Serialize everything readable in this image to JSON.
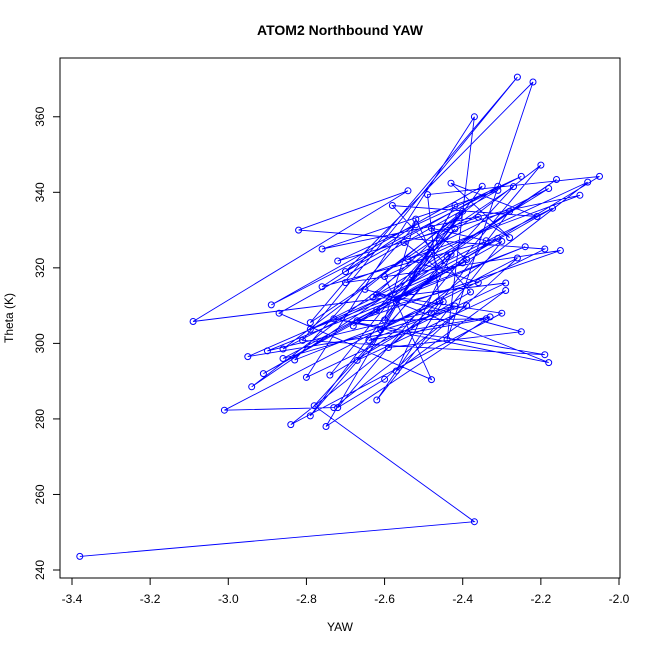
{
  "chart_data": {
    "type": "scatter",
    "connected": true,
    "title": "ATOM2 Northbound YAW",
    "xlabel": "YAW",
    "ylabel": "Theta (K)",
    "xlim": [
      -3.4,
      -2.0
    ],
    "ylim": [
      240,
      370
    ],
    "xticks": [
      -3.4,
      -3.2,
      -3.0,
      -2.8,
      -2.6,
      -2.4,
      -2.2,
      -2.0
    ],
    "xtick_labels": [
      "-3.4",
      "-3.2",
      "-3.0",
      "-2.8",
      "-2.6",
      "-2.4",
      "-2.2",
      "-2.0"
    ],
    "yticks": [
      240,
      260,
      280,
      300,
      320,
      340,
      360
    ],
    "ytick_labels": [
      "240",
      "260",
      "280",
      "300",
      "320",
      "340",
      "360"
    ],
    "grid": false,
    "line_color": "#0000ff",
    "points": [
      [
        -3.38,
        243.6
      ],
      [
        -2.37,
        252.8
      ],
      [
        -2.78,
        283.5
      ],
      [
        -2.27,
        341.5
      ],
      [
        -2.79,
        305.5
      ],
      [
        -2.26,
        370.5
      ],
      [
        -2.81,
        300.8
      ],
      [
        -2.19,
        297.0
      ],
      [
        -2.73,
        306.5
      ],
      [
        -2.18,
        294.9
      ],
      [
        -2.62,
        313.0
      ],
      [
        -2.3,
        308.0
      ],
      [
        -2.84,
        278.5
      ],
      [
        -2.48,
        308.0
      ],
      [
        -2.28,
        335.0
      ],
      [
        -2.72,
        321.8
      ],
      [
        -2.25,
        344.2
      ],
      [
        -2.89,
        310.2
      ],
      [
        -2.35,
        341.6
      ],
      [
        -2.79,
        280.8
      ],
      [
        -2.44,
        323.0
      ],
      [
        -2.16,
        343.4
      ],
      [
        -2.94,
        288.5
      ],
      [
        -2.2,
        347.2
      ],
      [
        -2.72,
        283.0
      ],
      [
        -2.6,
        290.5
      ],
      [
        -2.26,
        322.6
      ],
      [
        -3.01,
        282.3
      ],
      [
        -2.73,
        283.0
      ],
      [
        -2.39,
        310.0
      ],
      [
        -2.86,
        296.0
      ],
      [
        -2.4,
        321.3
      ],
      [
        -2.95,
        296.5
      ],
      [
        -2.33,
        307.0
      ],
      [
        -2.75,
        278.0
      ],
      [
        -2.42,
        336.5
      ],
      [
        -2.61,
        303.6
      ],
      [
        -2.19,
        325.0
      ],
      [
        -2.82,
        330.0
      ],
      [
        -2.54,
        340.4
      ],
      [
        -3.09,
        305.8
      ],
      [
        -2.29,
        316.0
      ],
      [
        -2.8,
        291.0
      ],
      [
        -2.37,
        360.0
      ],
      [
        -2.44,
        301.0
      ],
      [
        -2.22,
        369.2
      ],
      [
        -2.7,
        319.0
      ],
      [
        -2.31,
        341.6
      ],
      [
        -2.86,
        298.5
      ],
      [
        -2.31,
        327.8
      ],
      [
        -2.76,
        315.0
      ],
      [
        -2.52,
        331.4
      ],
      [
        -2.83,
        295.6
      ],
      [
        -2.45,
        311.0
      ],
      [
        -2.62,
        285.0
      ],
      [
        -2.3,
        327.0
      ],
      [
        -2.91,
        292.0
      ],
      [
        -2.17,
        335.8
      ],
      [
        -2.79,
        303.7
      ],
      [
        -2.24,
        325.6
      ],
      [
        -2.9,
        298.0
      ],
      [
        -2.42,
        309.9
      ],
      [
        -2.64,
        300.8
      ],
      [
        -2.34,
        306.5
      ],
      [
        -2.67,
        306.0
      ],
      [
        -2.15,
        324.6
      ],
      [
        -2.7,
        316.1
      ],
      [
        -2.1,
        339.2
      ],
      [
        -2.76,
        325.0
      ],
      [
        -2.31,
        340.5
      ],
      [
        -2.87,
        308.0
      ],
      [
        -2.48,
        290.4
      ],
      [
        -2.6,
        317.7
      ],
      [
        -2.08,
        342.7
      ],
      [
        -2.67,
        295.5
      ],
      [
        -2.29,
        314.0
      ],
      [
        -2.57,
        292.7
      ],
      [
        -2.43,
        323.6
      ],
      [
        -2.68,
        304.6
      ],
      [
        -2.05,
        344.2
      ],
      [
        -2.49,
        339.4
      ],
      [
        -2.46,
        311.3
      ],
      [
        -2.59,
        298.9
      ],
      [
        -2.25,
        303.1
      ],
      [
        -2.65,
        314.3
      ],
      [
        -2.4,
        335.0
      ],
      [
        -2.74,
        291.6
      ],
      [
        -2.38,
        313.6
      ],
      [
        -2.58,
        336.5
      ],
      [
        -2.21,
        333.6
      ],
      [
        -2.43,
        342.4
      ],
      [
        -2.28,
        328.0
      ],
      [
        -2.36,
        333.4
      ],
      [
        -2.55,
        326.7
      ],
      [
        -2.46,
        319.5
      ],
      [
        -2.52,
        332.9
      ],
      [
        -2.6,
        306.2
      ],
      [
        -2.41,
        333.7
      ],
      [
        -2.63,
        312.2
      ],
      [
        -2.18,
        341.0
      ],
      [
        -2.54,
        322.3
      ],
      [
        -2.36,
        316.1
      ],
      [
        -2.62,
        308.9
      ],
      [
        -2.46,
        327.2
      ],
      [
        -2.53,
        318.2
      ],
      [
        -2.42,
        330.3
      ],
      [
        -2.57,
        310.8
      ],
      [
        -2.39,
        322.2
      ],
      [
        -2.48,
        330.5
      ],
      [
        -2.34,
        327.2
      ]
    ]
  }
}
